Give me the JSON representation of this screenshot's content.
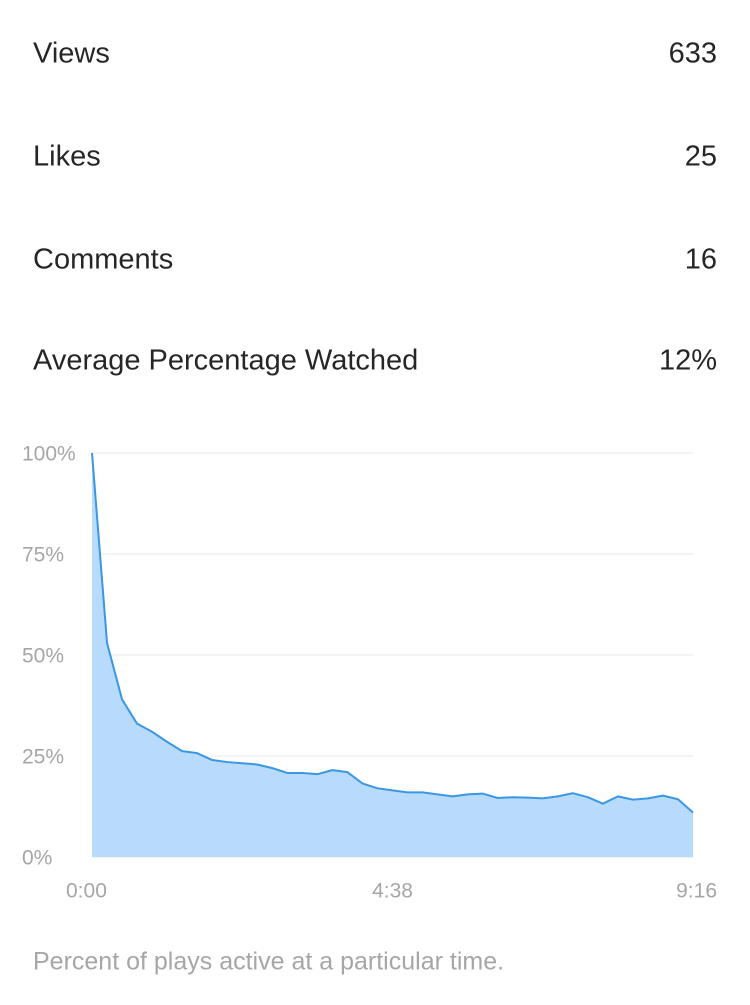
{
  "stats": [
    {
      "label": "Views",
      "value": "633"
    },
    {
      "label": "Likes",
      "value": "25"
    },
    {
      "label": "Comments",
      "value": "16"
    },
    {
      "label": "Average Percentage Watched",
      "value": "12%"
    }
  ],
  "chart_data": {
    "type": "area",
    "x": [
      0,
      13.9,
      27.8,
      41.7,
      55.6,
      69.5,
      83.4,
      97.3,
      111.2,
      125.1,
      139,
      152.9,
      166.8,
      180.7,
      194.6,
      208.5,
      222.4,
      236.3,
      250.2,
      264.1,
      278,
      291.9,
      305.8,
      319.7,
      333.6,
      347.5,
      361.4,
      375.3,
      389.2,
      403.1,
      417,
      430.9,
      444.8,
      458.7,
      472.6,
      486.5,
      500.4,
      514.3,
      528.2,
      542.1,
      556
    ],
    "values": [
      100,
      53,
      39,
      33,
      31,
      28.5,
      26.2,
      25.7,
      24,
      23.5,
      23.2,
      22.9,
      22,
      20.8,
      20.8,
      20.5,
      21.5,
      21,
      18.2,
      17,
      16.5,
      16,
      16,
      15.5,
      15,
      15.5,
      15.7,
      14.6,
      14.8,
      14.7,
      14.5,
      15,
      15.8,
      14.8,
      13.2,
      15,
      14.2,
      14.5,
      15.2,
      14.3,
      11
    ],
    "color": "#3b97e3",
    "fill": "#b8dbfb",
    "xlim": [
      0,
      556
    ],
    "xticks": [
      {
        "value": 0,
        "label": "0:00"
      },
      {
        "value": 278,
        "label": "4:38"
      },
      {
        "value": 556,
        "label": "9:16"
      }
    ],
    "ylim": [
      0,
      100
    ],
    "yticks": [
      {
        "value": 0,
        "label": "0%"
      },
      {
        "value": 25,
        "label": "25%"
      },
      {
        "value": 50,
        "label": "50%"
      },
      {
        "value": 75,
        "label": "75%"
      },
      {
        "value": 100,
        "label": "100%"
      }
    ],
    "grid": true,
    "caption": "Percent of plays active at a particular time."
  }
}
